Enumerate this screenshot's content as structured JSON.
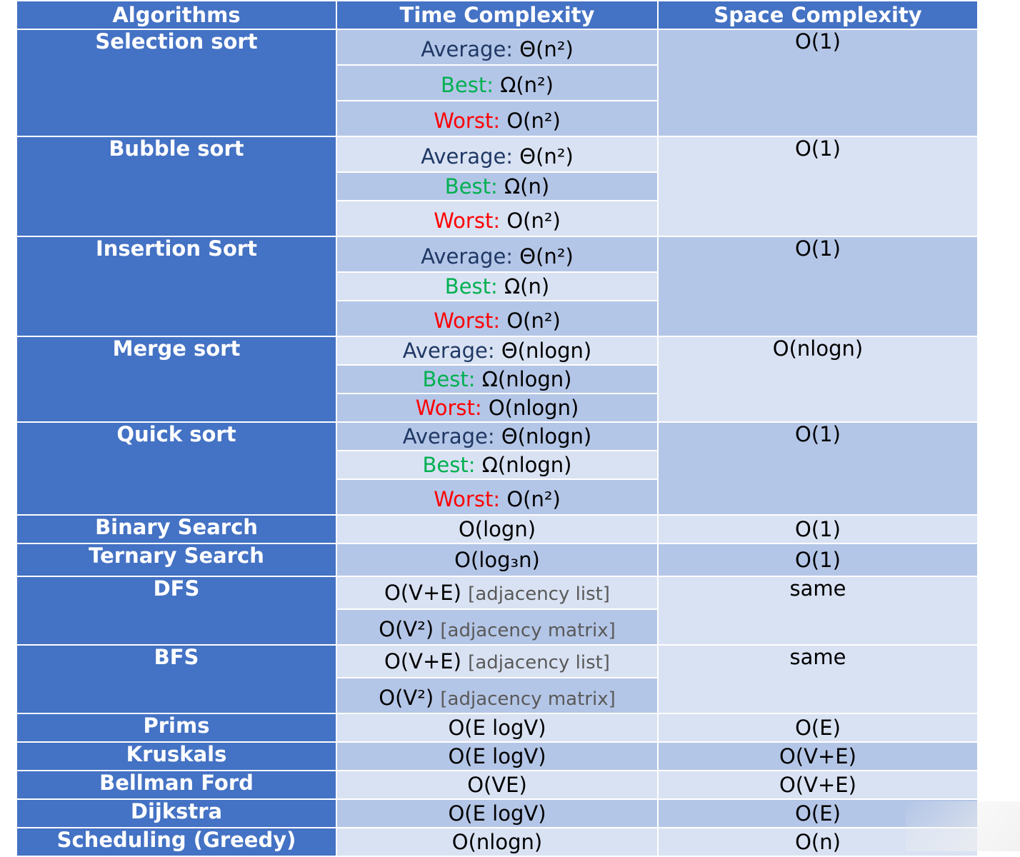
{
  "headers": [
    "Algorithms",
    "Time Complexity",
    "Space Complexity"
  ],
  "labels": {
    "average": "Average:",
    "best": "Best:",
    "worst": "Worst:",
    "adj_list": "[adjacency list]",
    "adj_matrix": "[adjacency matrix]"
  },
  "rows": [
    {
      "name": "Selection sort",
      "average": "Θ(n²)",
      "best": "Ω(n²)",
      "worst": "O(n²)",
      "space": "O(1)"
    },
    {
      "name": "Bubble sort",
      "average": "Θ(n²)",
      "best": "Ω(n)",
      "worst": "O(n²)",
      "space": "O(1)"
    },
    {
      "name": "Insertion Sort",
      "average": "Θ(n²)",
      "best": "Ω(n)",
      "worst": "O(n²)",
      "space": "O(1)"
    },
    {
      "name": "Merge sort",
      "average": "Θ(nlogn)",
      "best": "Ω(nlogn)",
      "worst": "O(nlogn)",
      "space": "O(nlogn)"
    },
    {
      "name": "Quick sort",
      "average": "Θ(nlogn)",
      "best": "Ω(nlogn)",
      "worst": "O(n²)",
      "space": "O(1)"
    },
    {
      "name": "Binary Search",
      "time": "O(logn)",
      "space": "O(1)"
    },
    {
      "name": "Ternary Search",
      "time": "O(log₃n)",
      "space": "O(1)"
    },
    {
      "name": "DFS",
      "time_list": "O(V+E)",
      "time_matrix": "O(V²)",
      "space": "same"
    },
    {
      "name": "BFS",
      "time_list": "O(V+E)",
      "time_matrix": "O(V²)",
      "space": "same"
    },
    {
      "name": "Prims",
      "time": "O(E logV)",
      "space": "O(E)"
    },
    {
      "name": "Kruskals",
      "time": "O(E logV)",
      "space": "O(V+E)"
    },
    {
      "name": "Bellman Ford",
      "time": "O(VE)",
      "space": "O(V+E)"
    },
    {
      "name": "Dijkstra",
      "time": "O(E logV)",
      "space": "O(E)"
    },
    {
      "name": "Scheduling (Greedy)",
      "time": "O(nlogn)",
      "space": "O(n)"
    }
  ],
  "colors": {
    "header_bg": "#4472c4",
    "row_dark": "#b4c6e7",
    "row_light": "#d9e2f3",
    "average_label": "#1f3864",
    "best_label": "#00b050",
    "worst_label": "#ff0000",
    "note_text": "#595959"
  }
}
